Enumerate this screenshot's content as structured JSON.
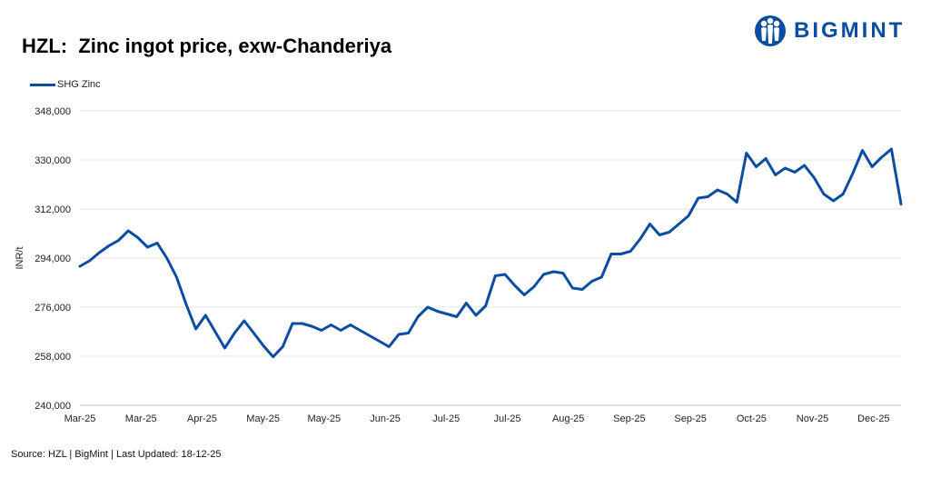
{
  "title": "HZL:  Zinc ingot price, exw-Chanderiya",
  "logo_text": "BIGMINT",
  "source": "Source: HZL | BigMint | Last Updated: 18-12-25",
  "colors": {
    "series": "#0b4da2",
    "grid": "#e3e3e3",
    "brand": "#0b4da2"
  },
  "chart_data": {
    "type": "line",
    "ylabel": "INR/t",
    "ylim": [
      240000,
      348000
    ],
    "yticks": [
      240000,
      258000,
      276000,
      294000,
      312000,
      330000,
      348000
    ],
    "ytick_labels": [
      "240,000",
      "258,000",
      "276,000",
      "294,000",
      "312,000",
      "330,000",
      "348,000"
    ],
    "xtick_labels": [
      "Mar-25",
      "Mar-25",
      "Apr-25",
      "May-25",
      "May-25",
      "Jun-25",
      "Jul-25",
      "Jul-25",
      "Aug-25",
      "Sep-25",
      "Sep-25",
      "Oct-25",
      "Nov-25",
      "Dec-25"
    ],
    "grid": true,
    "legend_position": "top-left",
    "series": [
      {
        "name": "SHG Zinc",
        "values": [
          291000,
          293000,
          296000,
          298500,
          300500,
          304000,
          301500,
          298000,
          299500,
          294000,
          287000,
          277000,
          268000,
          273000,
          267000,
          261000,
          266500,
          271000,
          266500,
          261800,
          257800,
          261500,
          270000,
          270000,
          269000,
          267500,
          269500,
          267500,
          269500,
          267500,
          265500,
          263500,
          261500,
          266000,
          266500,
          272500,
          276000,
          274500,
          273500,
          272500,
          277500,
          273000,
          276500,
          287500,
          288000,
          284000,
          280500,
          283500,
          288000,
          289000,
          288500,
          283000,
          282500,
          285500,
          287000,
          295500,
          295500,
          296500,
          301000,
          306500,
          302500,
          303500,
          306500,
          309500,
          316000,
          316500,
          319000,
          317500,
          314500,
          332500,
          327500,
          330500,
          324500,
          327000,
          325500,
          328000,
          323500,
          317500,
          315000,
          317500,
          325000,
          333500,
          327500,
          331000,
          334000,
          313800
        ]
      }
    ]
  }
}
